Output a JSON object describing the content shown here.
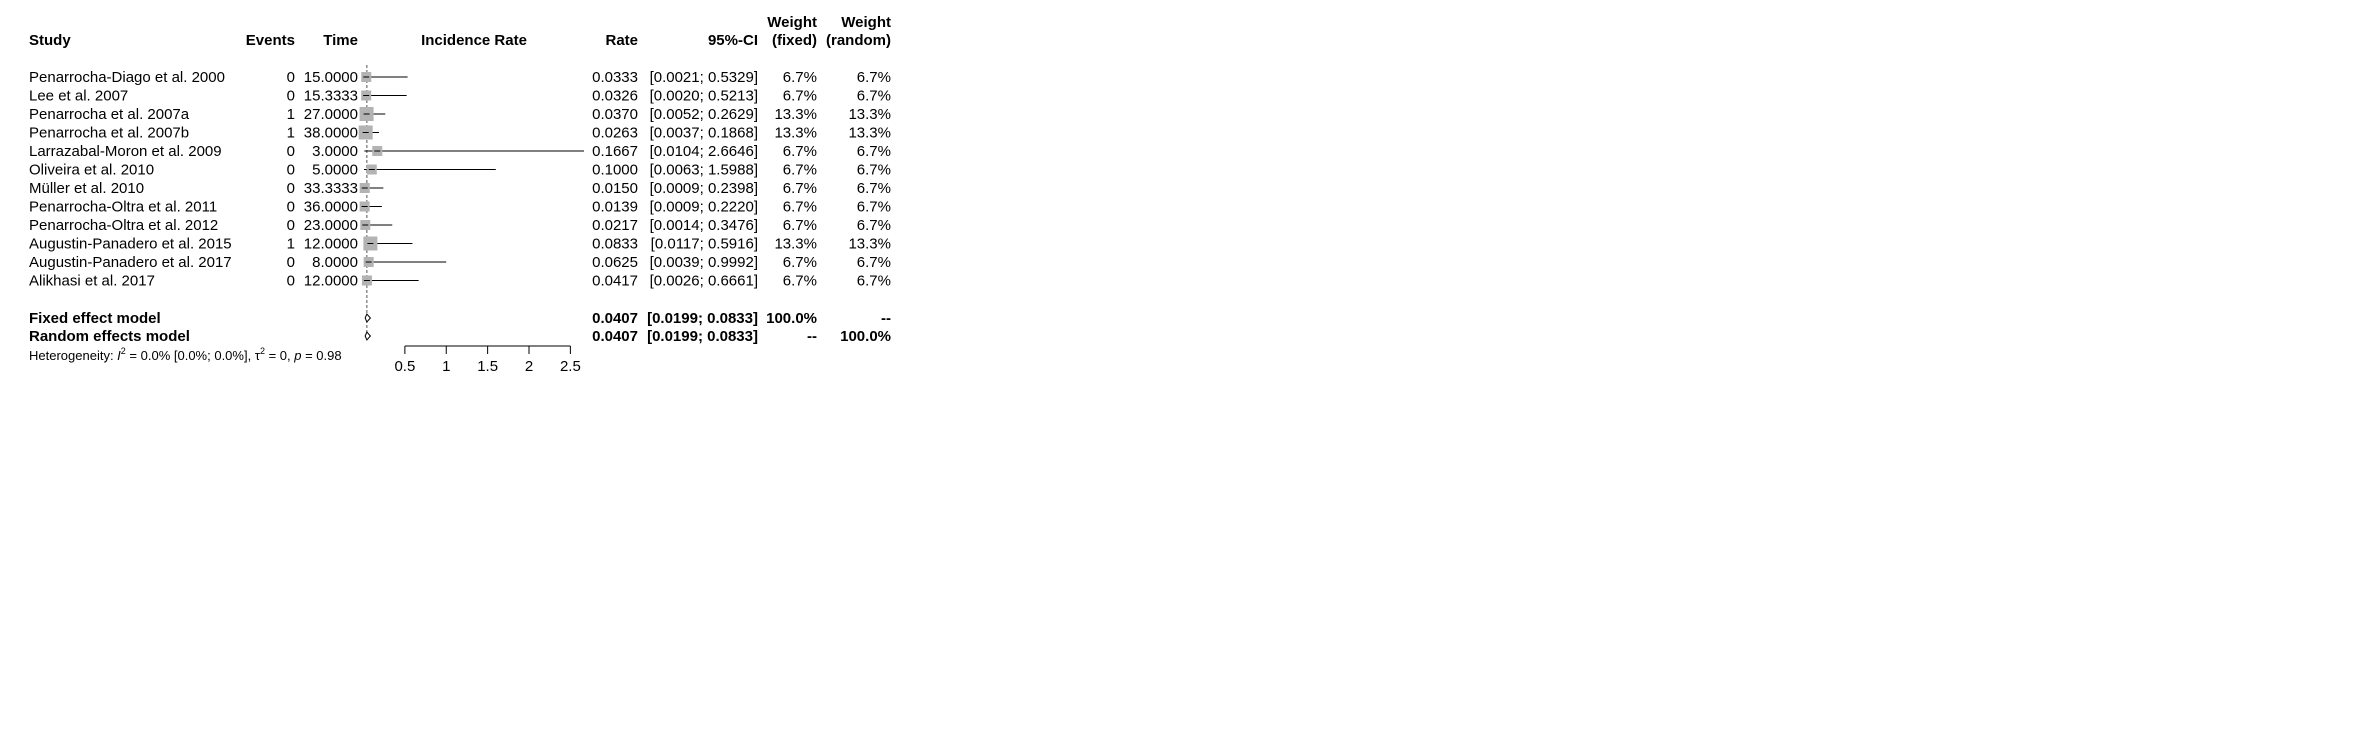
{
  "chart_data": {
    "type": "forest",
    "headers": {
      "study": "Study",
      "events": "Events",
      "time": "Time",
      "plot": "Incidence Rate",
      "rate": "Rate",
      "ci": "95%-CI",
      "weight_fixed_1": "Weight",
      "weight_fixed_2": "(fixed)",
      "weight_random_1": "Weight",
      "weight_random_2": "(random)"
    },
    "studies": [
      {
        "name": "Penarrocha-Diago et al. 2000",
        "events": "0",
        "time": "15.0000",
        "rate": 0.0333,
        "lower": 0.0021,
        "upper": 0.5329,
        "rate_text": "0.0333",
        "ci_text": "[0.0021; 0.5329]",
        "w_fixed": "6.7%",
        "w_random": "6.7%"
      },
      {
        "name": "Lee et al. 2007",
        "events": "0",
        "time": "15.3333",
        "rate": 0.0326,
        "lower": 0.002,
        "upper": 0.5213,
        "rate_text": "0.0326",
        "ci_text": "[0.0020; 0.5213]",
        "w_fixed": "6.7%",
        "w_random": "6.7%"
      },
      {
        "name": "Penarrocha et al. 2007a",
        "events": "1",
        "time": "27.0000",
        "rate": 0.037,
        "lower": 0.0052,
        "upper": 0.2629,
        "rate_text": "0.0370",
        "ci_text": "[0.0052; 0.2629]",
        "w_fixed": "13.3%",
        "w_random": "13.3%"
      },
      {
        "name": "Penarrocha et al. 2007b",
        "events": "1",
        "time": "38.0000",
        "rate": 0.0263,
        "lower": 0.0037,
        "upper": 0.1868,
        "rate_text": "0.0263",
        "ci_text": "[0.0037; 0.1868]",
        "w_fixed": "13.3%",
        "w_random": "13.3%"
      },
      {
        "name": "Larrazabal-Moron et al. 2009",
        "events": "0",
        "time": "3.0000",
        "rate": 0.1667,
        "lower": 0.0104,
        "upper": 2.6646,
        "rate_text": "0.1667",
        "ci_text": "[0.0104; 2.6646]",
        "w_fixed": "6.7%",
        "w_random": "6.7%"
      },
      {
        "name": "Oliveira et al. 2010",
        "events": "0",
        "time": "5.0000",
        "rate": 0.1,
        "lower": 0.0063,
        "upper": 1.5988,
        "rate_text": "0.1000",
        "ci_text": "[0.0063; 1.5988]",
        "w_fixed": "6.7%",
        "w_random": "6.7%"
      },
      {
        "name": "Müller et al. 2010",
        "events": "0",
        "time": "33.3333",
        "rate": 0.015,
        "lower": 0.0009,
        "upper": 0.2398,
        "rate_text": "0.0150",
        "ci_text": "[0.0009; 0.2398]",
        "w_fixed": "6.7%",
        "w_random": "6.7%"
      },
      {
        "name": "Penarrocha-Oltra et al. 2011",
        "events": "0",
        "time": "36.0000",
        "rate": 0.0139,
        "lower": 0.0009,
        "upper": 0.222,
        "rate_text": "0.0139",
        "ci_text": "[0.0009; 0.2220]",
        "w_fixed": "6.7%",
        "w_random": "6.7%"
      },
      {
        "name": "Penarrocha-Oltra et al. 2012",
        "events": "0",
        "time": "23.0000",
        "rate": 0.0217,
        "lower": 0.0014,
        "upper": 0.3476,
        "rate_text": "0.0217",
        "ci_text": "[0.0014; 0.3476]",
        "w_fixed": "6.7%",
        "w_random": "6.7%"
      },
      {
        "name": "Augustin-Panadero et al. 2015",
        "events": "1",
        "time": "12.0000",
        "rate": 0.0833,
        "lower": 0.0117,
        "upper": 0.5916,
        "rate_text": "0.0833",
        "ci_text": "[0.0117; 0.5916]",
        "w_fixed": "13.3%",
        "w_random": "13.3%"
      },
      {
        "name": "Augustin-Panadero et al. 2017",
        "events": "0",
        "time": "8.0000",
        "rate": 0.0625,
        "lower": 0.0039,
        "upper": 0.9992,
        "rate_text": "0.0625",
        "ci_text": "[0.0039; 0.9992]",
        "w_fixed": "6.7%",
        "w_random": "6.7%"
      },
      {
        "name": "Alikhasi et al. 2017",
        "events": "0",
        "time": "12.0000",
        "rate": 0.0417,
        "lower": 0.0026,
        "upper": 0.6661,
        "rate_text": "0.0417",
        "ci_text": "[0.0026; 0.6661]",
        "w_fixed": "6.7%",
        "w_random": "6.7%"
      }
    ],
    "summaries": [
      {
        "name": "Fixed effect model",
        "rate": 0.0407,
        "lower": 0.0199,
        "upper": 0.0833,
        "rate_text": "0.0407",
        "ci_text": "[0.0199; 0.0833]",
        "w_fixed": "100.0%",
        "w_random": "--"
      },
      {
        "name": "Random effects model",
        "rate": 0.0407,
        "lower": 0.0199,
        "upper": 0.0833,
        "rate_text": "0.0407",
        "ci_text": "[0.0199; 0.0833]",
        "w_fixed": "--",
        "w_random": "100.0%"
      }
    ],
    "heterogeneity": {
      "prefix": "Heterogeneity: ",
      "i2_symbol": "I",
      "i2_sup": "2",
      "i2_value": " = 0.0% [0.0%; 0.0%], ",
      "tau_symbol": "τ",
      "tau_sup": "2",
      "tau_value": " = 0, ",
      "p_symbol": "p",
      "p_value": " = 0.98"
    },
    "x_ticks": [
      0.5,
      1,
      1.5,
      2,
      2.5
    ],
    "x_tick_labels": [
      "0.5",
      "1",
      "1.5",
      "2",
      "2.5"
    ],
    "xlim": [
      0,
      2.6646
    ],
    "reference_line": 0.0407
  }
}
